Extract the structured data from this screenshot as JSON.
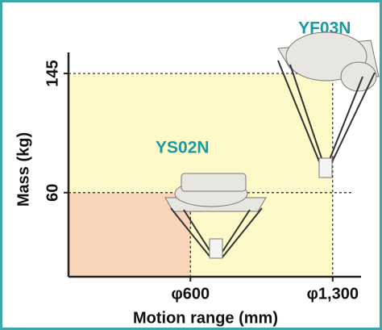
{
  "chart_data": {
    "type": "envelope",
    "x_label": "Motion range (mm)",
    "y_label": "Mass (kg)",
    "xlim": [
      0,
      1400
    ],
    "ylim": [
      0,
      160
    ],
    "xticks": [
      {
        "value": 600,
        "label": "φ600"
      },
      {
        "value": 1300,
        "label": "φ1,300"
      }
    ],
    "yticks": [
      60,
      145
    ],
    "grid": true,
    "series": [
      {
        "name": "YF03N",
        "color": "#fdf9c8",
        "x": 1300,
        "y": 145
      },
      {
        "name": "YS02N",
        "color": "#f8d5b8",
        "x": 600,
        "y": 60
      }
    ]
  }
}
